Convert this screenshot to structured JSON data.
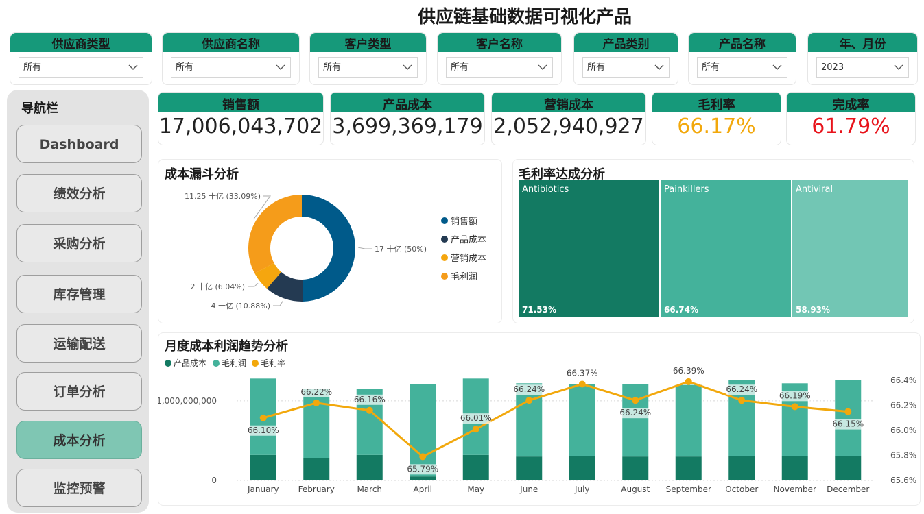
{
  "title": "供应链基础数据可视化产品",
  "filters": [
    {
      "label": "供应商类型",
      "value": "所有"
    },
    {
      "label": "供应商名称",
      "value": "所有"
    },
    {
      "label": "客户类型",
      "value": "所有"
    },
    {
      "label": "客户名称",
      "value": "所有"
    },
    {
      "label": "产品类别",
      "value": "所有"
    },
    {
      "label": "产品名称",
      "value": "所有"
    },
    {
      "label": "年、月份",
      "value": "2023"
    }
  ],
  "nav": {
    "title": "导航栏",
    "items": [
      "Dashboard",
      "绩效分析",
      "采购分析",
      "库存管理",
      "运输配送",
      "订单分析",
      "成本分析",
      "监控预警"
    ],
    "active_index": 6
  },
  "kpis": [
    {
      "label": "销售额",
      "value": "17,006,043,702",
      "color": "#222222"
    },
    {
      "label": "产品成本",
      "value": "3,699,369,179",
      "color": "#222222"
    },
    {
      "label": "营销成本",
      "value": "2,052,940,927",
      "color": "#222222"
    },
    {
      "label": "毛利率",
      "value": "66.17%",
      "color": "#f2a80c"
    },
    {
      "label": "完成率",
      "value": "61.79%",
      "color": "#e8131b"
    }
  ],
  "donut": {
    "title": "成本漏斗分析",
    "legend": [
      "销售额",
      "产品成本",
      "营销成本",
      "毛利润"
    ],
    "colors": [
      "#005a8a",
      "#243a52",
      "#f5a60e",
      "#f59c1a"
    ],
    "values": [
      17,
      4,
      2,
      11.25
    ],
    "labels": [
      "17 十亿 (50%)",
      "4 十亿 (10.88%)",
      "2 十亿 (6.04%)",
      "11.25 十亿 (33.09%)"
    ]
  },
  "treemap": {
    "title": "毛利率达成分析",
    "tiles": [
      {
        "name": "Antibiotics",
        "value": "71.53%",
        "color": "#137a62"
      },
      {
        "name": "Painkillers",
        "value": "66.74%",
        "color": "#44b29b"
      },
      {
        "name": "Antiviral",
        "value": "58.93%",
        "color": "#72c6b4"
      }
    ]
  },
  "chart_data": {
    "type": "bar",
    "title": "月度成本利润趋势分析",
    "legend": [
      "产品成本",
      "毛利润",
      "毛利率"
    ],
    "categories": [
      "January",
      "February",
      "March",
      "April",
      "May",
      "June",
      "July",
      "August",
      "September",
      "October",
      "November",
      "December"
    ],
    "series": [
      {
        "name": "产品成本",
        "values": [
          320000000,
          280000000,
          320000000,
          50000000,
          320000000,
          300000000,
          310000000,
          300000000,
          300000000,
          310000000,
          310000000,
          310000000
        ],
        "color": "#137a62"
      },
      {
        "name": "毛利润",
        "values": [
          960000000,
          870000000,
          830000000,
          1160000000,
          960000000,
          920000000,
          900000000,
          910000000,
          900000000,
          950000000,
          910000000,
          950000000
        ],
        "color": "#44b29b"
      },
      {
        "name": "毛利率",
        "values": [
          66.1,
          66.22,
          66.16,
          65.79,
          66.01,
          66.24,
          66.37,
          66.24,
          66.39,
          66.24,
          66.19,
          66.15
        ],
        "color": "#f2a80c",
        "axis": "right"
      }
    ],
    "point_labels": [
      "66.10%",
      "66.22%",
      "66.16%",
      "65.79%",
      "66.01%",
      "66.24%",
      "66.37%",
      "66.24%",
      "66.39%",
      "66.24%",
      "66.19%",
      "66.15%"
    ],
    "y_left": {
      "ticks": [
        "0",
        "1,000,000,000"
      ],
      "range": [
        0,
        1300000000
      ]
    },
    "y_right": {
      "ticks": [
        "65.6%",
        "65.8%",
        "66.0%",
        "66.2%",
        "66.4%"
      ],
      "range": [
        65.6,
        66.4
      ]
    }
  }
}
